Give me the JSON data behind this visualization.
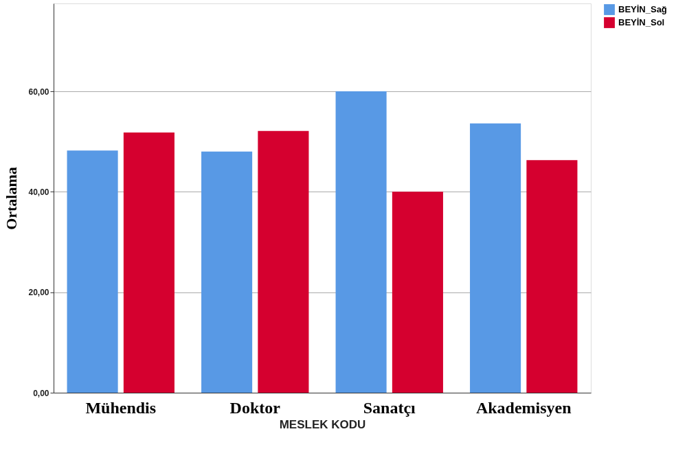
{
  "chart_data": {
    "type": "bar",
    "xlabel": "MESLEK KODU",
    "ylabel": "Ortalama",
    "categories": [
      "Mühendis",
      "Doktor",
      "Sanatçı",
      "Akademisyen"
    ],
    "series": [
      {
        "name": "BEYİN_Sağ",
        "color": "#5899e5",
        "values": [
          48.2,
          48.0,
          60.0,
          53.6
        ]
      },
      {
        "name": "BEYİN_Sol",
        "color": "#d5002f",
        "values": [
          51.8,
          52.1,
          40.0,
          46.3
        ]
      }
    ],
    "ylim": [
      0,
      77.5
    ],
    "yticks": [
      {
        "value": 0,
        "label": "0,00"
      },
      {
        "value": 20,
        "label": "20,00"
      },
      {
        "value": 40,
        "label": "40,00"
      },
      {
        "value": 60,
        "label": "60,00"
      }
    ],
    "grid": "y",
    "legend": "top right"
  }
}
